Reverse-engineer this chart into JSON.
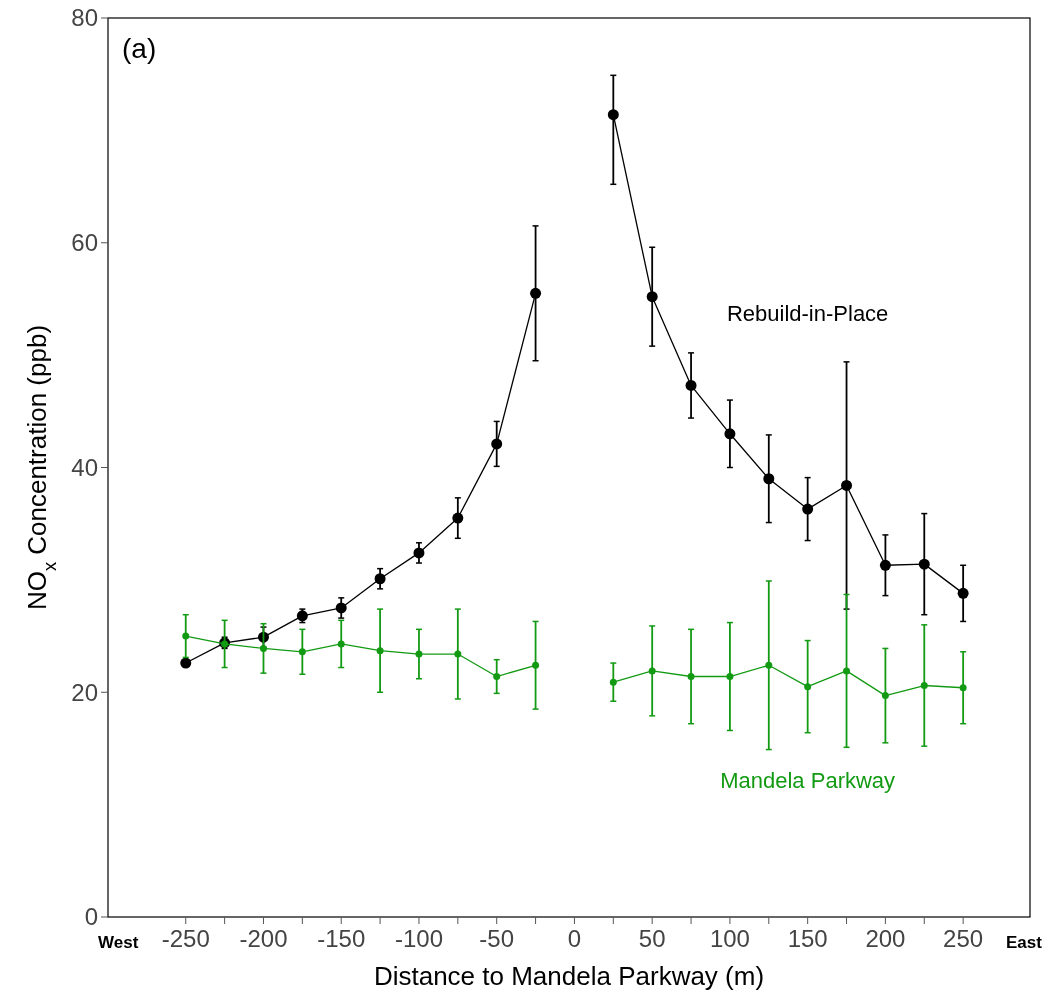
{
  "chart_data": {
    "type": "line",
    "xlabel": "Distance to Mandela Parkway (m)",
    "ylabel": "NO$_{x}$ Concentration (ppb)",
    "annotations": [
      "(a)",
      "West",
      "East"
    ],
    "x": [
      -250,
      -225,
      -200,
      -175,
      -150,
      -125,
      -100,
      -75,
      -50,
      -25,
      0,
      25,
      50,
      75,
      100,
      125,
      150,
      175,
      200,
      225,
      250
    ],
    "series": [
      {
        "name": "Rebuild-in-Place",
        "color": "#000000",
        "values": [
          22.6,
          24.4,
          24.9,
          26.8,
          27.5,
          30.1,
          32.4,
          35.5,
          42.1,
          55.5,
          null,
          71.4,
          55.2,
          47.3,
          43.0,
          39.0,
          36.3,
          38.4,
          31.3,
          31.4,
          28.8
        ],
        "errors": [
          0.3,
          0.5,
          0.9,
          0.6,
          0.9,
          0.9,
          0.9,
          1.8,
          2,
          6,
          null,
          [
            65.2,
            74.9
          ],
          4.4,
          2.9,
          3,
          3.9,
          2.8,
          11,
          2.7,
          4.5,
          2.5
        ]
      },
      {
        "name": "Mandela Parkway",
        "color": "#139a13",
        "values": [
          25.0,
          24.3,
          23.9,
          23.6,
          24.3,
          23.7,
          23.4,
          23.4,
          21.4,
          22.4,
          null,
          20.9,
          21.9,
          21.4,
          21.4,
          22.4,
          20.5,
          21.9,
          19.7,
          20.6,
          20.4
        ],
        "errors": [
          1.9,
          2.1,
          2.2,
          2,
          2.1,
          3.7,
          2.2,
          4,
          1.5,
          3.9,
          null,
          1.7,
          4,
          4.2,
          4.8,
          7.5,
          4.1,
          6.8,
          4.2,
          5.4,
          3.2
        ]
      }
    ],
    "xlim": [
      -300,
      293
    ],
    "ylim": [
      0,
      80
    ],
    "xticks": [
      -250,
      {
        "value": -225,
        "label": null
      },
      -200,
      {
        "value": -175,
        "label": null
      },
      -150,
      {
        "value": -125,
        "label": null
      },
      -100,
      {
        "value": -75,
        "label": null
      },
      -50,
      {
        "value": -25,
        "label": null
      },
      0,
      {
        "value": 25,
        "label": null
      },
      50,
      {
        "value": 75,
        "label": null
      },
      100,
      {
        "value": 125,
        "label": null
      },
      150,
      {
        "value": 175,
        "label": null
      },
      200,
      {
        "value": 225,
        "label": null
      },
      250
    ],
    "yticks": [
      0,
      20,
      40,
      60,
      80
    ],
    "grid": false,
    "marker": "circle",
    "line_style": "solid"
  }
}
